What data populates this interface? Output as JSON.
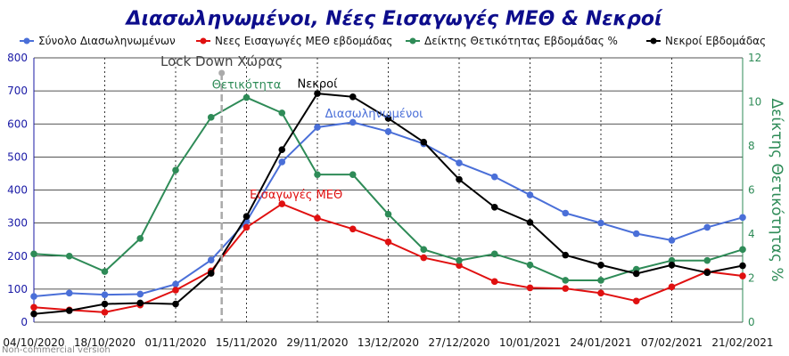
{
  "chart_data": {
    "type": "line",
    "title": "Διασωληνωμένοι, Νέες Εισαγωγές ΜΕΘ & Νεκροί",
    "watermark": "Non-commercial version",
    "x": [
      "04/10/2020",
      "11/10/2020",
      "18/10/2020",
      "25/10/2020",
      "01/11/2020",
      "08/11/2020",
      "15/11/2020",
      "22/11/2020",
      "29/11/2020",
      "06/12/2020",
      "13/12/2020",
      "20/12/2020",
      "27/12/2020",
      "03/01/2021",
      "10/01/2021",
      "17/01/2021",
      "24/01/2021",
      "31/01/2021",
      "07/02/2021",
      "14/02/2021",
      "21/02/2021"
    ],
    "x_tick_labels": [
      "04/10/2020",
      "18/10/2020",
      "01/11/2020",
      "15/11/2020",
      "29/11/2020",
      "13/12/2020",
      "27/12/2020",
      "10/01/2021",
      "24/01/2021",
      "07/02/2021",
      "21/02/2021"
    ],
    "y_left": {
      "ylim": [
        0,
        800
      ],
      "ticks": [
        0,
        100,
        200,
        300,
        400,
        500,
        600,
        700,
        800
      ],
      "color": "#1a1aa6"
    },
    "y_right": {
      "ylim": [
        0,
        12
      ],
      "ticks": [
        0,
        2,
        4,
        6,
        8,
        10,
        12
      ],
      "label": "Δείκτης Θετικότητας %",
      "color": "#2e8b57"
    },
    "series": [
      {
        "name": "Σύνολο Διασωληνωμένων",
        "color": "#4a6fd8",
        "axis": "left",
        "values": [
          78,
          88,
          83,
          85,
          115,
          188,
          305,
          485,
          590,
          605,
          577,
          540,
          482,
          440,
          385,
          330,
          300,
          268,
          248,
          287,
          317
        ]
      },
      {
        "name": "Νεες Εισαγωγές ΜΕΘ εβδομάδας",
        "color": "#e01010",
        "axis": "left",
        "values": [
          45,
          37,
          30,
          52,
          97,
          155,
          287,
          358,
          315,
          282,
          243,
          195,
          172,
          123,
          104,
          102,
          88,
          64,
          107,
          153,
          140
        ]
      },
      {
        "name": "Δείκτης Θετικότητας Εβδομάδας %",
        "color": "#2e8b57",
        "axis": "right",
        "values": [
          3.1,
          3.0,
          2.3,
          3.8,
          6.9,
          9.3,
          10.2,
          9.5,
          6.7,
          6.7,
          4.9,
          3.3,
          2.8,
          3.1,
          2.6,
          1.9,
          1.9,
          2.4,
          2.8,
          2.8,
          3.3
        ]
      },
      {
        "name": "Νεκροί Εβδομάδας",
        "color": "#000000",
        "axis": "left",
        "values": [
          25,
          35,
          55,
          58,
          55,
          148,
          320,
          522,
          692,
          682,
          617,
          545,
          432,
          348,
          302,
          203,
          173,
          147,
          173,
          150,
          171
        ]
      }
    ],
    "annotations": [
      {
        "text": "Lock Down Χώρας",
        "kind": "vline",
        "x_index": 5.3,
        "color": "#aaaaaa"
      },
      {
        "text": "Θετικότητα",
        "x_index": 6,
        "y": 10.6,
        "axis": "right",
        "color": "#2e8b57"
      },
      {
        "text": "Νεκροί",
        "x_index": 8,
        "y": 710,
        "axis": "left",
        "color": "#000000"
      },
      {
        "text": "Διασωληνωμένοι",
        "x_index": 9.6,
        "y": 620,
        "axis": "left",
        "color": "#4a6fd8"
      },
      {
        "text": "Εισαγωγές ΜΕΘ",
        "x_index": 7.4,
        "y": 375,
        "axis": "left",
        "color": "#e01010"
      }
    ],
    "grid": {
      "horizontal": true,
      "vertical": "dotted"
    },
    "legend_position": "top"
  }
}
